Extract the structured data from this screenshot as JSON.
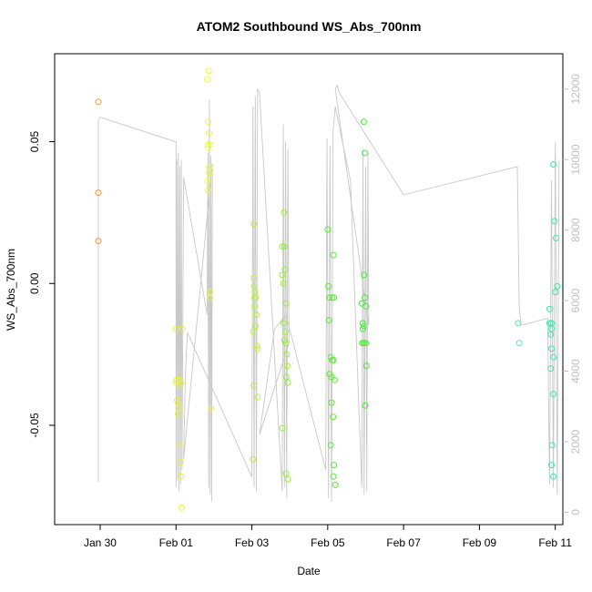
{
  "chart_data": {
    "type": "scatter",
    "title": "ATOM2 Southbound WS_Abs_700nm",
    "xlabel": "Date",
    "ylabel": "WS_Abs_700nm",
    "x_ticks": [
      "Jan 30",
      "Feb 01",
      "Feb 03",
      "Feb 05",
      "Feb 07",
      "Feb 09",
      "Feb 11"
    ],
    "y_ticks": [
      "-0.05",
      "0.00",
      "0.05"
    ],
    "y2_ticks": [
      "0",
      "2000",
      "4000",
      "6000",
      "8000",
      "10000",
      "12000"
    ],
    "xlim_days": [
      -2.2,
      11.2
    ],
    "ylim": [
      -0.085,
      0.081
    ],
    "y2lim": [
      -350,
      13000
    ],
    "grid": false,
    "series": [
      {
        "color": "#F39A3C",
        "points": [
          [
            -1.05,
            0.064
          ],
          [
            -1.05,
            0.032
          ],
          [
            -1.05,
            0.015
          ]
        ]
      },
      {
        "color": "#E8F040",
        "points": [
          [
            1.0,
            -0.016
          ],
          [
            1.02,
            -0.034
          ],
          [
            1.03,
            -0.041
          ],
          [
            1.05,
            -0.042
          ],
          [
            1.06,
            -0.044
          ],
          [
            1.08,
            -0.036
          ],
          [
            1.1,
            -0.057
          ],
          [
            1.12,
            -0.063
          ],
          [
            1.13,
            -0.068
          ],
          [
            1.15,
            -0.079
          ],
          [
            1.17,
            -0.016
          ],
          [
            1.05,
            -0.046
          ],
          [
            1.0,
            -0.035
          ],
          [
            1.1,
            -0.034
          ],
          [
            1.14,
            -0.035
          ]
        ]
      },
      {
        "color": "#EEFB3A",
        "points": [
          [
            1.82,
            0.072
          ],
          [
            1.86,
            0.075
          ],
          [
            1.85,
            0.057
          ],
          [
            1.87,
            0.053
          ],
          [
            1.84,
            0.049
          ],
          [
            1.89,
            0.049
          ],
          [
            1.85,
            0.048
          ],
          [
            1.88,
            0.041
          ],
          [
            1.87,
            0.039
          ],
          [
            1.83,
            0.036
          ],
          [
            1.84,
            0.033
          ],
          [
            1.91,
            -0.003
          ],
          [
            1.9,
            -0.005
          ],
          [
            1.92,
            -0.044
          ]
        ]
      },
      {
        "color": "#B8F23A",
        "points": [
          [
            3.05,
            0.021
          ],
          [
            3.05,
            0.002
          ],
          [
            3.06,
            -0.001
          ],
          [
            3.08,
            -0.003
          ],
          [
            3.07,
            -0.005
          ],
          [
            3.1,
            -0.005
          ],
          [
            3.07,
            -0.008
          ],
          [
            3.12,
            -0.011
          ],
          [
            3.1,
            -0.015
          ],
          [
            3.04,
            -0.017
          ],
          [
            3.13,
            -0.022
          ],
          [
            3.14,
            -0.023
          ],
          [
            3.05,
            -0.036
          ],
          [
            3.15,
            -0.04
          ],
          [
            3.03,
            -0.062
          ]
        ]
      },
      {
        "color": "#99EE3A",
        "points": [
          [
            3.85,
            0.025
          ],
          [
            3.8,
            0.013
          ],
          [
            3.86,
            0.013
          ],
          [
            3.87,
            0.005
          ],
          [
            3.8,
            0.003
          ],
          [
            3.83,
            0.0
          ],
          [
            3.9,
            -0.007
          ],
          [
            3.84,
            -0.014
          ],
          [
            3.88,
            -0.017
          ],
          [
            3.86,
            -0.02
          ],
          [
            3.9,
            -0.021
          ],
          [
            3.92,
            -0.025
          ],
          [
            3.93,
            -0.029
          ],
          [
            3.91,
            -0.033
          ],
          [
            3.95,
            -0.035
          ],
          [
            3.8,
            -0.051
          ],
          [
            3.9,
            -0.067
          ],
          [
            3.95,
            -0.069
          ]
        ]
      },
      {
        "color": "#5FE83A",
        "points": [
          [
            5.0,
            0.019
          ],
          [
            5.15,
            0.01
          ],
          [
            5.02,
            -0.001
          ],
          [
            5.05,
            -0.005
          ],
          [
            5.12,
            -0.005
          ],
          [
            5.16,
            -0.005
          ],
          [
            5.03,
            -0.013
          ],
          [
            5.08,
            -0.026
          ],
          [
            5.12,
            -0.027
          ],
          [
            5.15,
            -0.027
          ],
          [
            5.05,
            -0.032
          ],
          [
            5.1,
            -0.033
          ],
          [
            5.18,
            -0.034
          ],
          [
            5.1,
            -0.042
          ],
          [
            5.14,
            -0.047
          ],
          [
            5.08,
            -0.057
          ],
          [
            5.16,
            -0.064
          ],
          [
            5.15,
            -0.068
          ],
          [
            5.2,
            -0.071
          ]
        ]
      },
      {
        "color": "#4AE83A",
        "points": [
          [
            5.95,
            0.057
          ],
          [
            5.98,
            0.046
          ],
          [
            5.96,
            0.003
          ],
          [
            5.98,
            -0.005
          ],
          [
            5.9,
            -0.007
          ],
          [
            6.0,
            -0.008
          ],
          [
            5.92,
            -0.014
          ],
          [
            5.95,
            -0.015
          ],
          [
            5.93,
            -0.016
          ],
          [
            5.95,
            -0.021
          ],
          [
            5.91,
            -0.021
          ],
          [
            6.0,
            -0.021
          ],
          [
            6.02,
            -0.029
          ],
          [
            5.99,
            -0.043
          ]
        ]
      },
      {
        "color": "#55E8B0",
        "points": [
          [
            10.02,
            -0.014
          ],
          [
            10.05,
            -0.021
          ]
        ]
      },
      {
        "color": "#3AE8A8",
        "points": [
          [
            10.95,
            0.042
          ],
          [
            10.98,
            0.022
          ],
          [
            11.02,
            0.016
          ],
          [
            11.05,
            -0.001
          ],
          [
            11.0,
            -0.003
          ],
          [
            10.85,
            -0.009
          ],
          [
            10.9,
            -0.014
          ],
          [
            10.85,
            -0.014
          ],
          [
            10.9,
            -0.016
          ],
          [
            10.88,
            -0.018
          ],
          [
            10.9,
            -0.023
          ],
          [
            10.95,
            -0.026
          ],
          [
            10.88,
            -0.03
          ],
          [
            10.95,
            -0.039
          ],
          [
            10.92,
            -0.057
          ],
          [
            10.9,
            -0.064
          ],
          [
            10.95,
            -0.068
          ]
        ]
      }
    ],
    "secondary_line": {
      "color": "#c8c8c8",
      "x": [
        -1.05,
        -1.05,
        -1.0,
        1.0,
        1.0,
        1.02,
        1.04,
        1.06,
        1.08,
        1.1,
        1.12,
        1.14,
        1.16,
        1.2,
        1.82,
        1.84,
        1.86,
        1.88,
        1.9,
        1.92,
        1.94,
        1.96,
        1.2,
        1.25,
        1.3,
        3.0,
        3.03,
        3.06,
        3.09,
        3.12,
        3.15,
        3.2,
        3.8,
        3.83,
        3.86,
        3.89,
        3.92,
        3.95,
        3.98,
        3.2,
        3.6,
        3.9,
        4.95,
        4.98,
        5.02,
        5.06,
        5.1,
        5.14,
        5.2,
        5.6,
        5.9,
        5.93,
        5.96,
        6.0,
        6.03,
        6.06,
        6.08,
        5.2,
        5.25,
        5.3,
        7.0,
        10.0,
        10.05,
        10.1,
        10.8,
        10.85,
        10.9,
        10.95,
        11.0,
        11.05,
        11.1
      ],
      "y": [
        850,
        11100,
        11200,
        10500,
        700,
        10000,
        900,
        10200,
        600,
        9800,
        800,
        10000,
        1200,
        9500,
        5600,
        10200,
        700,
        11700,
        500,
        10100,
        300,
        9900,
        1500,
        4000,
        5100,
        1000,
        11500,
        700,
        11800,
        600,
        12000,
        11900,
        600,
        11000,
        700,
        10500,
        400,
        10300,
        4800,
        2200,
        5200,
        5600,
        1200,
        10600,
        400,
        10400,
        300,
        10800,
        11500,
        9400,
        700,
        10300,
        500,
        9800,
        600,
        10200,
        5300,
        12000,
        12100,
        11900,
        9000,
        9800,
        5800,
        5300,
        5500,
        800,
        9400,
        700,
        10500,
        500,
        10000
      ]
    }
  }
}
